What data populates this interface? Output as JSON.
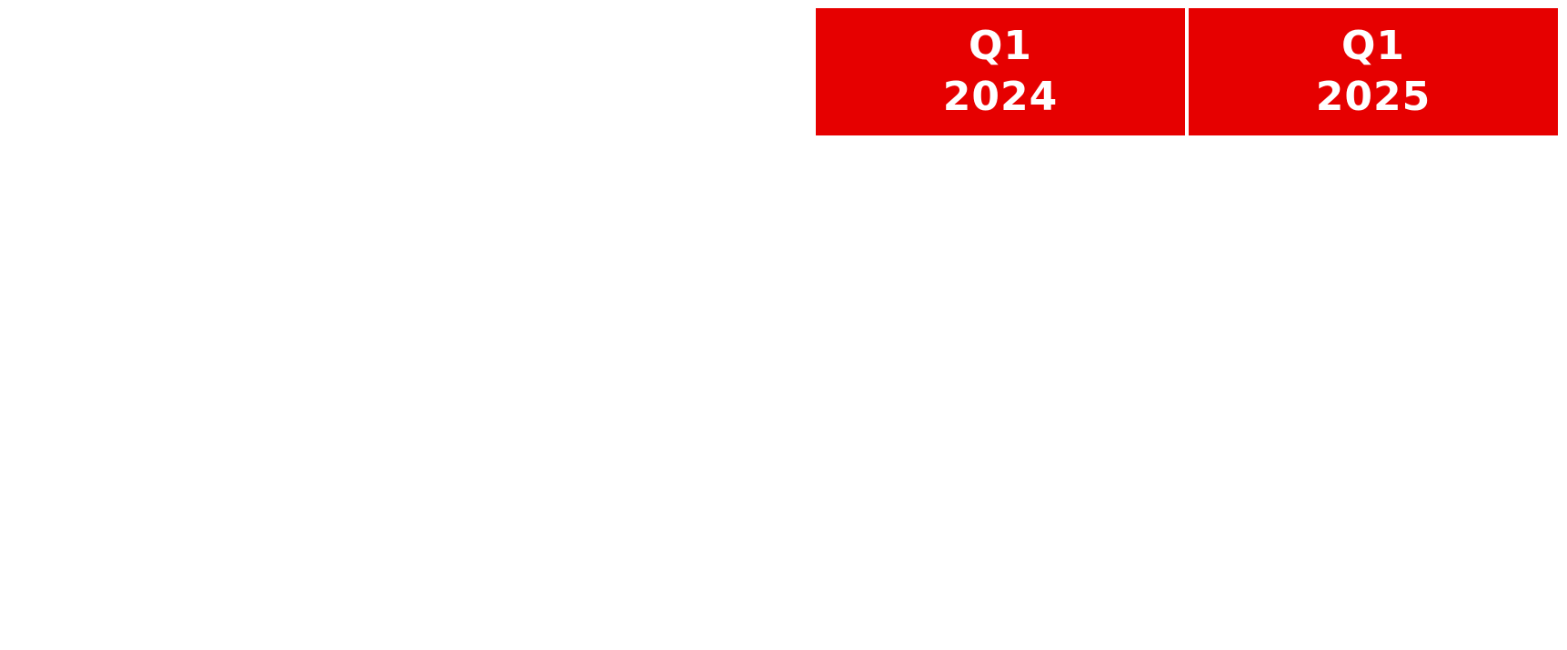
{
  "colors": {
    "header_background": "#e60000",
    "header_text": "#ffffff",
    "page_background": "#ffffff"
  },
  "table": {
    "columns": [
      {
        "quarter": "Q1",
        "year": "2024"
      },
      {
        "quarter": "Q1",
        "year": "2025"
      }
    ]
  }
}
